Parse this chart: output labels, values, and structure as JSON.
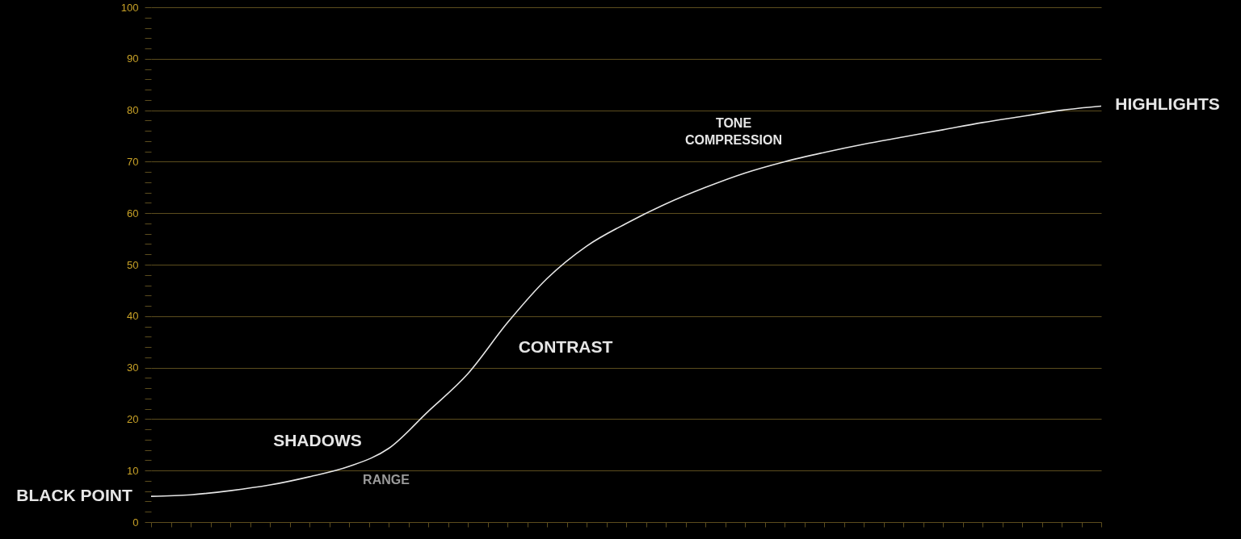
{
  "chart_data": {
    "type": "line",
    "categories": [
      null,
      null,
      null,
      null,
      null,
      null,
      null,
      null,
      null,
      null,
      null,
      null,
      null,
      null,
      null,
      null,
      null,
      null,
      null,
      null,
      null,
      null,
      null,
      null,
      null
    ],
    "series": [
      {
        "color": "#e6e6e6",
        "values": [
          5.0,
          5.3,
          6.1,
          7.2,
          8.8,
          10.8,
          14.3,
          21.5,
          28.8,
          38.7,
          47.3,
          53.6,
          58.0,
          61.8,
          65.0,
          67.8,
          70.0,
          71.8,
          73.4,
          74.8,
          76.2,
          77.6,
          78.8,
          80.0,
          80.8
        ]
      }
    ],
    "ylim": [
      0,
      100
    ],
    "yticks": [
      0,
      {
        "value": 2,
        "label": null
      },
      {
        "value": 4,
        "label": null
      },
      {
        "value": 6,
        "label": null
      },
      {
        "value": 8,
        "label": null
      },
      10,
      {
        "value": 12,
        "label": null
      },
      {
        "value": 14,
        "label": null
      },
      {
        "value": 16,
        "label": null
      },
      {
        "value": 18,
        "label": null
      },
      20,
      {
        "value": 22,
        "label": null
      },
      {
        "value": 24,
        "label": null
      },
      {
        "value": 26,
        "label": null
      },
      {
        "value": 28,
        "label": null
      },
      30,
      {
        "value": 32,
        "label": null
      },
      {
        "value": 34,
        "label": null
      },
      {
        "value": 36,
        "label": null
      },
      {
        "value": 38,
        "label": null
      },
      40,
      {
        "value": 42,
        "label": null
      },
      {
        "value": 44,
        "label": null
      },
      {
        "value": 46,
        "label": null
      },
      {
        "value": 48,
        "label": null
      },
      50,
      {
        "value": 52,
        "label": null
      },
      {
        "value": 54,
        "label": null
      },
      {
        "value": 56,
        "label": null
      },
      {
        "value": 58,
        "label": null
      },
      60,
      {
        "value": 62,
        "label": null
      },
      {
        "value": 64,
        "label": null
      },
      {
        "value": 66,
        "label": null
      },
      {
        "value": 68,
        "label": null
      },
      70,
      {
        "value": 72,
        "label": null
      },
      {
        "value": 74,
        "label": null
      },
      {
        "value": 76,
        "label": null
      },
      {
        "value": 78,
        "label": null
      },
      80,
      {
        "value": 82,
        "label": null
      },
      {
        "value": 84,
        "label": null
      },
      {
        "value": 86,
        "label": null
      },
      {
        "value": 88,
        "label": null
      },
      90,
      {
        "value": 92,
        "label": null
      },
      {
        "value": 94,
        "label": null
      },
      {
        "value": 96,
        "label": null
      },
      {
        "value": 98,
        "label": null
      },
      100
    ],
    "grid": "y",
    "marker": "none",
    "line_style": "solid",
    "tick_labels": "y",
    "annotations": [
      "BLACK POINT",
      "HIGHLIGHTS",
      "TONE\nCOMPRESSION",
      "CONTRAST",
      "SHADOWS",
      "RANGE"
    ]
  }
}
